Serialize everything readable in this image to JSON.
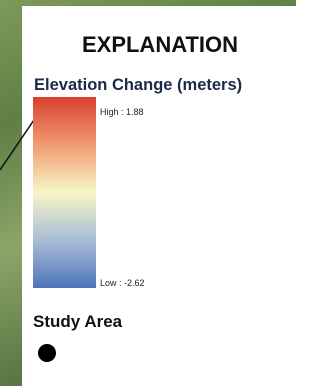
{
  "legend": {
    "title": "EXPLANATION",
    "raster_title": "Elevation Change (meters)",
    "high_label": "High : 1.88",
    "low_label": "Low : -2.62",
    "point_title": "Study Area"
  }
}
